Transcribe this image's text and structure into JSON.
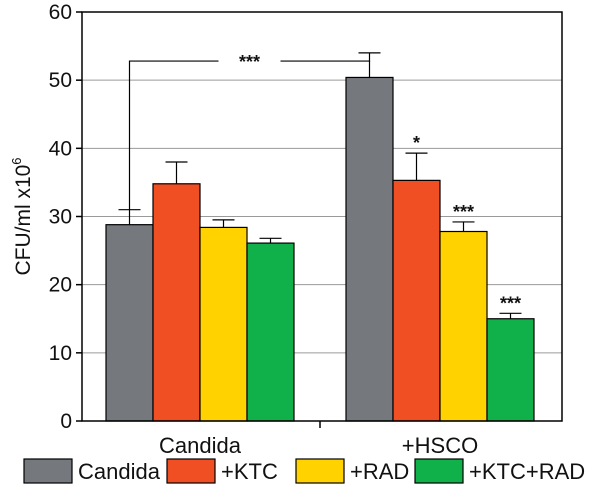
{
  "chart_data": {
    "type": "bar",
    "categories": [
      "Candida",
      "+HSCO"
    ],
    "series": [
      {
        "name": "Candida",
        "color": "#75787c",
        "values": [
          28.8,
          50.4
        ],
        "errors": [
          2.2,
          3.6
        ]
      },
      {
        "name": "+KTC",
        "color": "#f04e23",
        "values": [
          34.8,
          35.3
        ],
        "errors": [
          3.2,
          4.0
        ]
      },
      {
        "name": "+RAD",
        "color": "#ffd200",
        "values": [
          28.4,
          27.8
        ],
        "errors": [
          1.1,
          1.4
        ]
      },
      {
        "name": "+KTC+RAD",
        "color": "#10b04b",
        "values": [
          26.1,
          15.0
        ],
        "errors": [
          0.7,
          0.8
        ]
      }
    ],
    "significance": [
      {
        "category": "+HSCO",
        "series": "+KTC",
        "label": "*"
      },
      {
        "category": "+HSCO",
        "series": "+RAD",
        "label": "***"
      },
      {
        "category": "+HSCO",
        "series": "+KTC+RAD",
        "label": "***"
      }
    ],
    "comparison_bracket": {
      "from": "Candida / Candida",
      "to": "+HSCO / Candida",
      "label": "***"
    },
    "ylabel": "CFU/ml x10",
    "ylabel_exponent": "6",
    "ylim": [
      0,
      60
    ],
    "yticks": [
      0,
      10,
      20,
      30,
      40,
      50,
      60
    ],
    "grid": true,
    "legend_position": "bottom"
  }
}
